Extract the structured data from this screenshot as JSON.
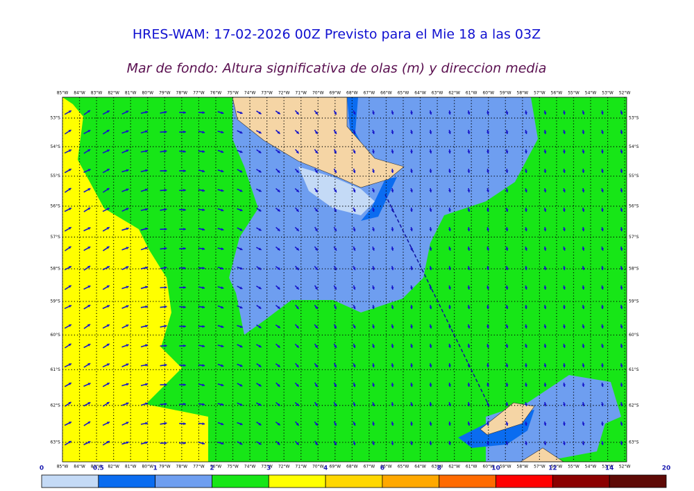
{
  "header": {
    "title": "HRES-WAM: 17-02-2026 00Z Previsto para el Mie 18 a las 03Z",
    "subtitle": "Mar de fondo: Altura significativa de olas (m) y direccion media"
  },
  "map": {
    "longitudes": [
      {
        "value": -85,
        "label": "85°W"
      },
      {
        "value": -84,
        "label": "84°W"
      },
      {
        "value": -83,
        "label": "83°W"
      },
      {
        "value": -82,
        "label": "82°W"
      },
      {
        "value": -81,
        "label": "81°W"
      },
      {
        "value": -80,
        "label": "80°W"
      },
      {
        "value": -79,
        "label": "79°W"
      },
      {
        "value": -78,
        "label": "78°W"
      },
      {
        "value": -77,
        "label": "77°W"
      },
      {
        "value": -76,
        "label": "76°W"
      },
      {
        "value": -75,
        "label": "75°W"
      },
      {
        "value": -74,
        "label": "74°W"
      },
      {
        "value": -73,
        "label": "73°W"
      },
      {
        "value": -72,
        "label": "72°W"
      },
      {
        "value": -71,
        "label": "71°W"
      },
      {
        "value": -70,
        "label": "70°W"
      },
      {
        "value": -69,
        "label": "69°W"
      },
      {
        "value": -68,
        "label": "68°W"
      },
      {
        "value": -67,
        "label": "67°W"
      },
      {
        "value": -66,
        "label": "66°W"
      },
      {
        "value": -65,
        "label": "65°W"
      },
      {
        "value": -64,
        "label": "64°W"
      },
      {
        "value": -63,
        "label": "63°W"
      },
      {
        "value": -62,
        "label": "62°W"
      },
      {
        "value": -61,
        "label": "61°W"
      },
      {
        "value": -60,
        "label": "60°W"
      },
      {
        "value": -59,
        "label": "59°W"
      },
      {
        "value": -58,
        "label": "58°W"
      },
      {
        "value": -57,
        "label": "57°W"
      },
      {
        "value": -56,
        "label": "56°W"
      },
      {
        "value": -55,
        "label": "55°W"
      },
      {
        "value": -54,
        "label": "54°W"
      },
      {
        "value": -53,
        "label": "53°W"
      },
      {
        "value": -52,
        "label": "52°W"
      }
    ],
    "latitudes": [
      {
        "value": -53,
        "label": "53°S"
      },
      {
        "value": -54,
        "label": "54°S"
      },
      {
        "value": -55,
        "label": "55°S"
      },
      {
        "value": -56,
        "label": "56°S"
      },
      {
        "value": -57,
        "label": "57°S"
      },
      {
        "value": -58,
        "label": "58°S"
      },
      {
        "value": -59,
        "label": "59°S"
      },
      {
        "value": -60,
        "label": "60°S"
      },
      {
        "value": -61,
        "label": "61°S"
      },
      {
        "value": -62,
        "label": "62°S"
      },
      {
        "value": -63,
        "label": "63°S"
      }
    ]
  },
  "colorbar": {
    "ticks": [
      0,
      0.5,
      1,
      2,
      3,
      4,
      6,
      8,
      10,
      12,
      14,
      20
    ],
    "colors": [
      "#c4daf6",
      "#0a6cf0",
      "#6e9ef0",
      "#17e617",
      "#ffff00",
      "#ffd700",
      "#ffa800",
      "#ff6a00",
      "#ff0000",
      "#8b0000",
      "#5e0a06",
      "#333333"
    ]
  }
}
